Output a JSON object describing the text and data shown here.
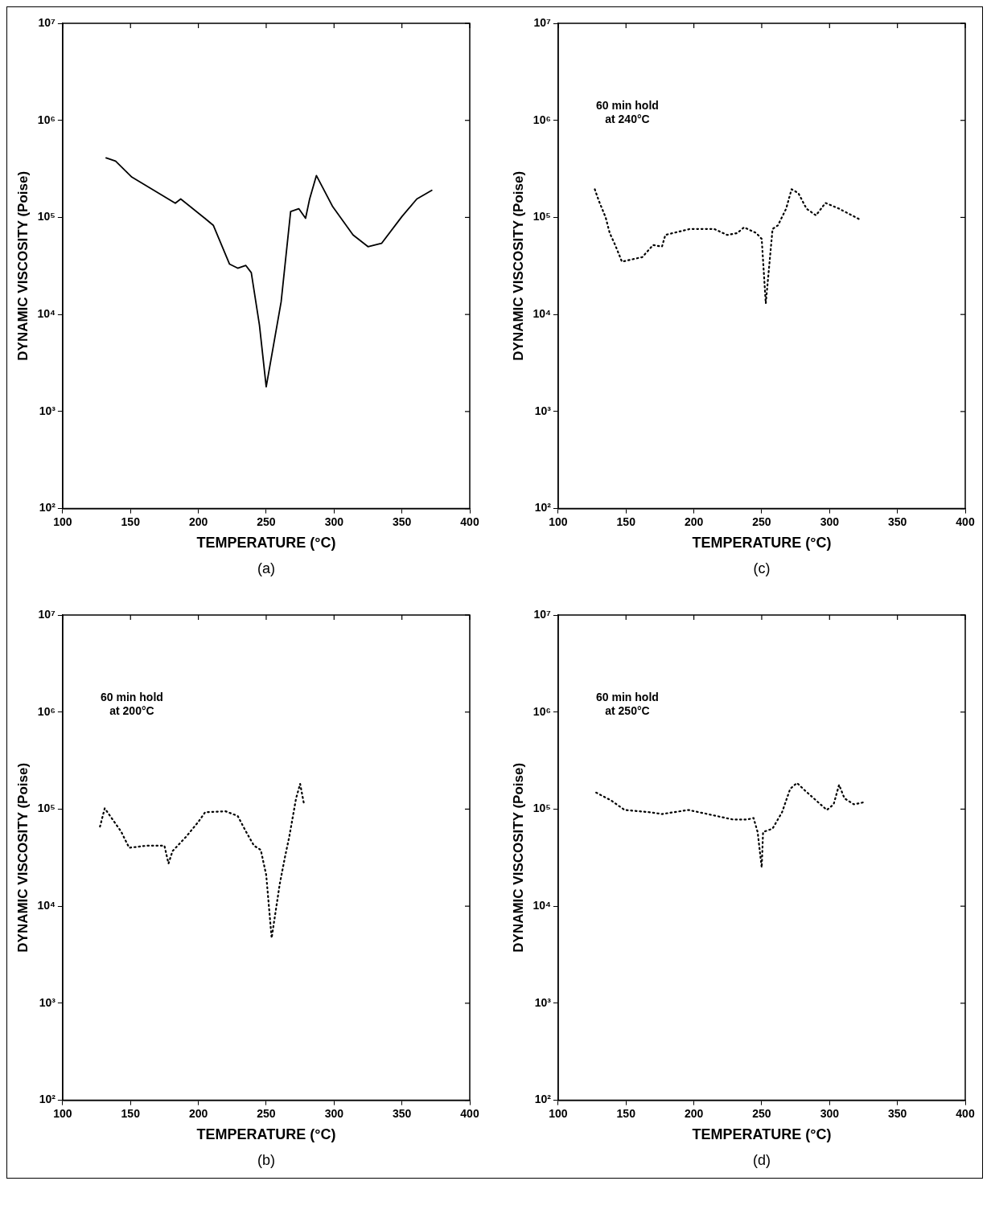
{
  "chart_data": [
    {
      "type": "line",
      "xlabel": "TEMPERATURE (°C)",
      "ylabel": "DYNAMIC VISCOSITY (Poise)",
      "annotations": [
        "(a)"
      ],
      "color": "#000000",
      "line_style": "solid",
      "marker": "none",
      "log": "y",
      "grid": false,
      "legend": false,
      "x": [
        132,
        139,
        151,
        183,
        187,
        204,
        211,
        223,
        229,
        235,
        239,
        245,
        250,
        261,
        268,
        274,
        279,
        282,
        287,
        299,
        314,
        325,
        335,
        350,
        361,
        372
      ],
      "values": [
        410000,
        380000,
        260000,
        140000,
        155000,
        100000,
        83000,
        33000,
        30000,
        32000,
        27000,
        7800,
        1800,
        13500,
        115000,
        123000,
        98000,
        155000,
        270000,
        129000,
        66000,
        50000,
        54000,
        102000,
        155000,
        190000
      ],
      "xlim": [
        100,
        400
      ],
      "xticks": [
        100,
        150,
        200,
        250,
        300,
        350,
        400
      ],
      "ylim": [
        100,
        10000000
      ],
      "yticks": [
        {
          "value": 100,
          "label": "10²"
        },
        {
          "value": 1000,
          "label": "10³"
        },
        {
          "value": 10000,
          "label": "10⁴"
        },
        {
          "value": 100000,
          "label": "10⁵"
        },
        {
          "value": 1000000,
          "label": "10⁶"
        },
        {
          "value": 10000000,
          "label": "10⁷"
        }
      ]
    },
    {
      "type": "line",
      "xlabel": "TEMPERATURE (°C)",
      "ylabel": "DYNAMIC VISCOSITY (Poise)",
      "annotations": [
        "(c)",
        "60 min hold\nat 240°C"
      ],
      "color": "#000000",
      "line_style": "dotted",
      "marker": "none",
      "log": "y",
      "grid": false,
      "legend": false,
      "x": [
        127,
        130,
        135,
        138,
        142,
        147,
        162,
        170,
        176.5,
        179,
        197,
        215,
        224.5,
        232,
        237,
        246,
        250,
        253,
        258,
        262,
        268,
        272,
        277,
        283,
        290,
        297,
        307,
        322.5
      ],
      "values": [
        195000,
        148000,
        100000,
        69000,
        52000,
        35000,
        39000,
        52000,
        50000,
        66000,
        76000,
        76000,
        66000,
        69000,
        79000,
        69000,
        60000,
        13000,
        76000,
        83000,
        123000,
        195000,
        178000,
        123000,
        105000,
        141000,
        123000,
        95000
      ],
      "xlim": [
        100,
        400
      ],
      "xticks": [
        100,
        150,
        200,
        250,
        300,
        350,
        400
      ],
      "ylim": [
        100,
        10000000
      ],
      "yticks": [
        {
          "value": 100,
          "label": "10²"
        },
        {
          "value": 1000,
          "label": "10³"
        },
        {
          "value": 10000,
          "label": "10⁴"
        },
        {
          "value": 100000,
          "label": "10⁵"
        },
        {
          "value": 1000000,
          "label": "10⁶"
        },
        {
          "value": 10000000,
          "label": "10⁷"
        }
      ]
    },
    {
      "type": "line",
      "xlabel": "TEMPERATURE (°C)",
      "ylabel": "DYNAMIC VISCOSITY (Poise)",
      "annotations": [
        "(b)",
        "60 min hold\nat 200°C"
      ],
      "color": "#000000",
      "line_style": "dotted",
      "marker": "none",
      "log": "y",
      "grid": false,
      "legend": false,
      "x": [
        127.5,
        131,
        143,
        149,
        162,
        175,
        178,
        181,
        191,
        200,
        205,
        220,
        229,
        235,
        241,
        246,
        250,
        254,
        260,
        264,
        267,
        272,
        275,
        278
      ],
      "values": [
        66000,
        102000,
        59000,
        40000,
        42000,
        42000,
        27500,
        37000,
        52000,
        74000,
        93000,
        95000,
        85000,
        59000,
        42000,
        38000,
        21000,
        4700,
        17000,
        33000,
        52000,
        129000,
        182000,
        110000
      ],
      "xlim": [
        100,
        400
      ],
      "xticks": [
        100,
        150,
        200,
        250,
        300,
        350,
        400
      ],
      "ylim": [
        100,
        10000000
      ],
      "yticks": [
        {
          "value": 100,
          "label": "10²"
        },
        {
          "value": 1000,
          "label": "10³"
        },
        {
          "value": 10000,
          "label": "10⁴"
        },
        {
          "value": 100000,
          "label": "10⁵"
        },
        {
          "value": 1000000,
          "label": "10⁶"
        },
        {
          "value": 10000000,
          "label": "10⁷"
        }
      ]
    },
    {
      "type": "line",
      "xlabel": "TEMPERATURE (°C)",
      "ylabel": "DYNAMIC VISCOSITY (Poise)",
      "annotations": [
        "(d)",
        "60 min hold\nat 250°C"
      ],
      "color": "#000000",
      "line_style": "dotted",
      "marker": "none",
      "log": "y",
      "grid": false,
      "legend": false,
      "x": [
        128,
        139,
        149,
        167,
        176.5,
        196,
        210,
        229,
        239,
        244,
        247,
        250,
        251,
        258,
        265,
        271,
        276,
        282,
        298,
        303,
        307,
        311,
        318,
        324.5
      ],
      "values": [
        148000,
        123000,
        98000,
        93000,
        89000,
        98000,
        89000,
        78000,
        78000,
        81000,
        58000,
        25000,
        58000,
        63000,
        93000,
        162000,
        186000,
        155000,
        98000,
        112000,
        178000,
        129000,
        112000,
        117000
      ],
      "xlim": [
        100,
        400
      ],
      "xticks": [
        100,
        150,
        200,
        250,
        300,
        350,
        400
      ],
      "ylim": [
        100,
        10000000
      ],
      "yticks": [
        {
          "value": 100,
          "label": "10²"
        },
        {
          "value": 1000,
          "label": "10³"
        },
        {
          "value": 10000,
          "label": "10⁴"
        },
        {
          "value": 100000,
          "label": "10⁵"
        },
        {
          "value": 1000000,
          "label": "10⁶"
        },
        {
          "value": 10000000,
          "label": "10⁷"
        }
      ]
    }
  ]
}
